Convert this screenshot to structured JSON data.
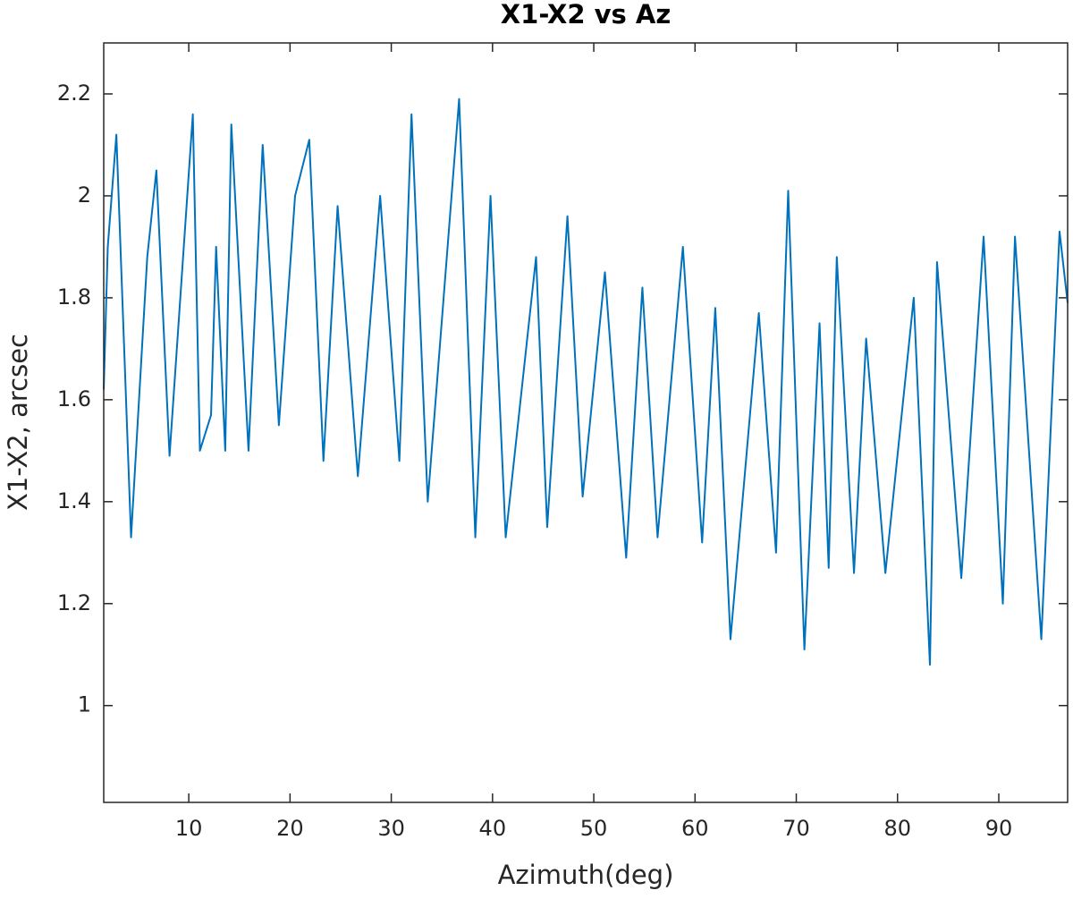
{
  "chart_data": {
    "type": "line",
    "title": "X1-X2  vs Az",
    "xlabel": "Azimuth(deg)",
    "ylabel": "X1-X2, arcsec",
    "x": [
      1.6,
      2.0,
      2.85,
      4.3,
      5.9,
      6.8,
      8.1,
      10.4,
      11.1,
      12.2,
      12.7,
      13.6,
      14.2,
      15.9,
      17.3,
      18.9,
      20.5,
      21.9,
      23.3,
      24.7,
      26.7,
      28.9,
      30.8,
      32,
      33.6,
      36.7,
      38.3,
      39.8,
      41.3,
      44.3,
      45.4,
      47.4,
      48.9,
      51.1,
      53.2,
      54.8,
      56.3,
      58.8,
      60.7,
      62,
      63.5,
      66.3,
      68,
      69.2,
      70.8,
      72.3,
      73.2,
      74,
      75.7,
      76.9,
      78.8,
      81.6,
      83.2,
      83.9,
      86.3,
      88.5,
      90.4,
      91.6,
      94.2,
      96,
      96.8
    ],
    "values": [
      1.62,
      1.9,
      2.12,
      1.33,
      1.88,
      2.05,
      1.49,
      2.16,
      1.5,
      1.57,
      1.9,
      1.5,
      2.14,
      1.5,
      2.1,
      1.55,
      2.0,
      2.11,
      1.48,
      1.98,
      1.45,
      2.0,
      1.48,
      2.16,
      1.4,
      2.19,
      1.33,
      2.0,
      1.33,
      1.88,
      1.35,
      1.96,
      1.41,
      1.85,
      1.29,
      1.82,
      1.33,
      1.9,
      1.32,
      1.78,
      1.13,
      1.77,
      1.3,
      2.01,
      1.11,
      1.75,
      1.27,
      1.88,
      1.26,
      1.72,
      1.26,
      1.8,
      1.08,
      1.87,
      1.25,
      1.92,
      1.2,
      1.92,
      1.13,
      1.93,
      1.79
    ],
    "color": "#0072bd",
    "xlim": [
      1.6,
      96.8
    ],
    "xticks": [
      10,
      20,
      30,
      40,
      50,
      60,
      70,
      80,
      90
    ],
    "ylim": [
      0.81,
      2.3
    ],
    "yticks": [
      1,
      1.2,
      1.4,
      1.6,
      1.8,
      2,
      2.2
    ],
    "grid": false
  }
}
